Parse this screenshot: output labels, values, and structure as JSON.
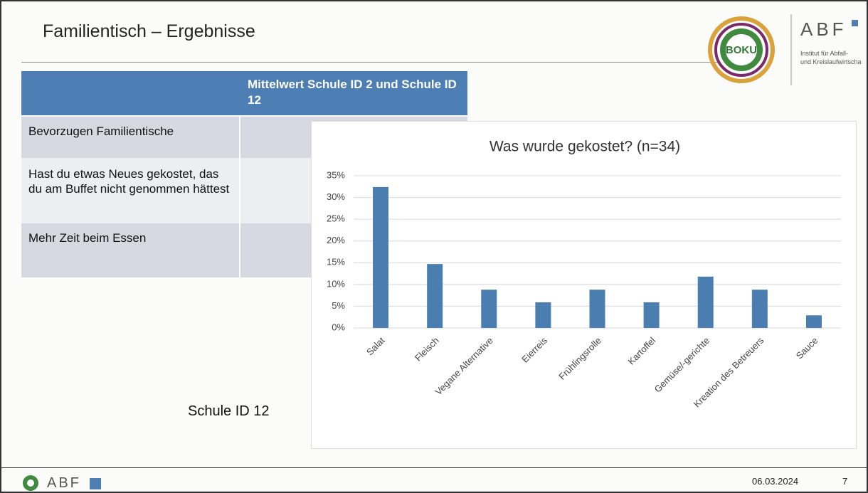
{
  "slide": {
    "title": "Familientisch – Ergebnisse",
    "logo": {
      "boku": "BOKU",
      "abf": "ABF",
      "institute_line1": "Institut für Abfall-",
      "institute_line2": "und Kreislaufwirtscha"
    },
    "note": "Schule ID 12",
    "footer": {
      "logo": "ABF",
      "date": "06.03.2024",
      "page": "7"
    }
  },
  "table": {
    "header": "Mittelwert Schule ID 2 und Schule ID 12",
    "rows": [
      "Bevorzugen Familientische",
      "Hast du etwas Neues gekostet, das du am Buffet nicht genommen hättest",
      "Mehr Zeit beim Essen"
    ]
  },
  "chart_data": {
    "type": "bar",
    "title": "Was wurde gekostet? (n=34)",
    "categories": [
      "Salat",
      "Fleisch",
      "Vegane Alternative",
      "Eierreis",
      "Frühlingsrolle",
      "Kartoffel",
      "Gemüse/-gerichte",
      "Kreation des Betreuers",
      "Sauce"
    ],
    "values": [
      32.4,
      14.7,
      8.8,
      5.9,
      8.8,
      5.9,
      11.8,
      8.8,
      2.9
    ],
    "color": "#4a7eb0",
    "ylim": [
      0,
      35
    ],
    "yticks": [
      {
        "value": 0,
        "label": "0%"
      },
      {
        "value": 5,
        "label": "5%"
      },
      {
        "value": 10,
        "label": "10%"
      },
      {
        "value": 15,
        "label": "15%"
      },
      {
        "value": 20,
        "label": "20%"
      },
      {
        "value": 25,
        "label": "25%"
      },
      {
        "value": 30,
        "label": "30%"
      },
      {
        "value": 35,
        "label": "35%"
      }
    ],
    "grid": true
  }
}
